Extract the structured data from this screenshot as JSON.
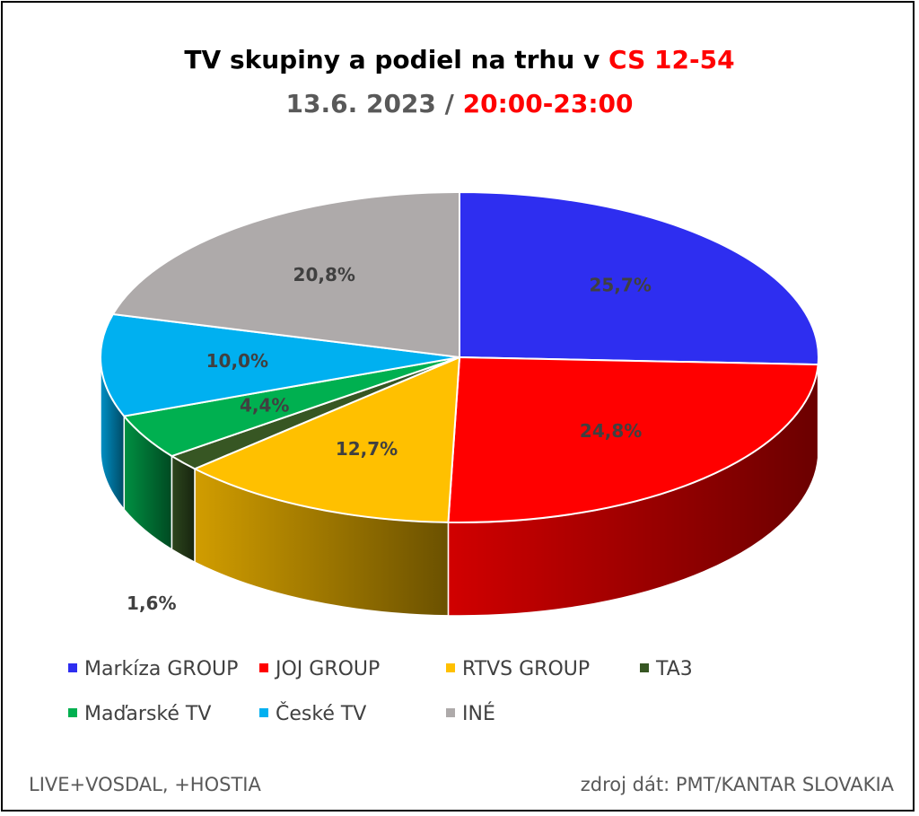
{
  "header": {
    "title_part1": "TV skupiny a podiel na trhu v ",
    "title_part2": "CS 12-54",
    "subtitle_part1": "13.6. 2023 / ",
    "subtitle_part2": "20:00-23:00"
  },
  "chart_data": {
    "type": "pie",
    "style": "3d",
    "legend_position": "bottom",
    "slices": [
      {
        "name": "Markíza GROUP",
        "value": 25.7,
        "label": "25,7%",
        "color": "#2e2ef0"
      },
      {
        "name": "JOJ GROUP",
        "value": 24.8,
        "label": "24,8%",
        "color": "#ff0000"
      },
      {
        "name": "RTVS GROUP",
        "value": 12.7,
        "label": "12,7%",
        "color": "#ffc000"
      },
      {
        "name": "TA3",
        "value": 1.6,
        "label": "1,6%",
        "color": "#375623"
      },
      {
        "name": "Maďarské  TV",
        "value": 4.4,
        "label": "4,4%",
        "color": "#00b050"
      },
      {
        "name": "České  TV",
        "value": 10.0,
        "label": "10,0%",
        "color": "#00b0f0"
      },
      {
        "name": "INÉ",
        "value": 20.8,
        "label": "20,8%",
        "color": "#aeaaaa"
      }
    ]
  },
  "footer": {
    "left": "LIVE+VOSDAL, +HOSTIA",
    "right": "zdroj dát: PMT/KANTAR SLOVAKIA"
  }
}
